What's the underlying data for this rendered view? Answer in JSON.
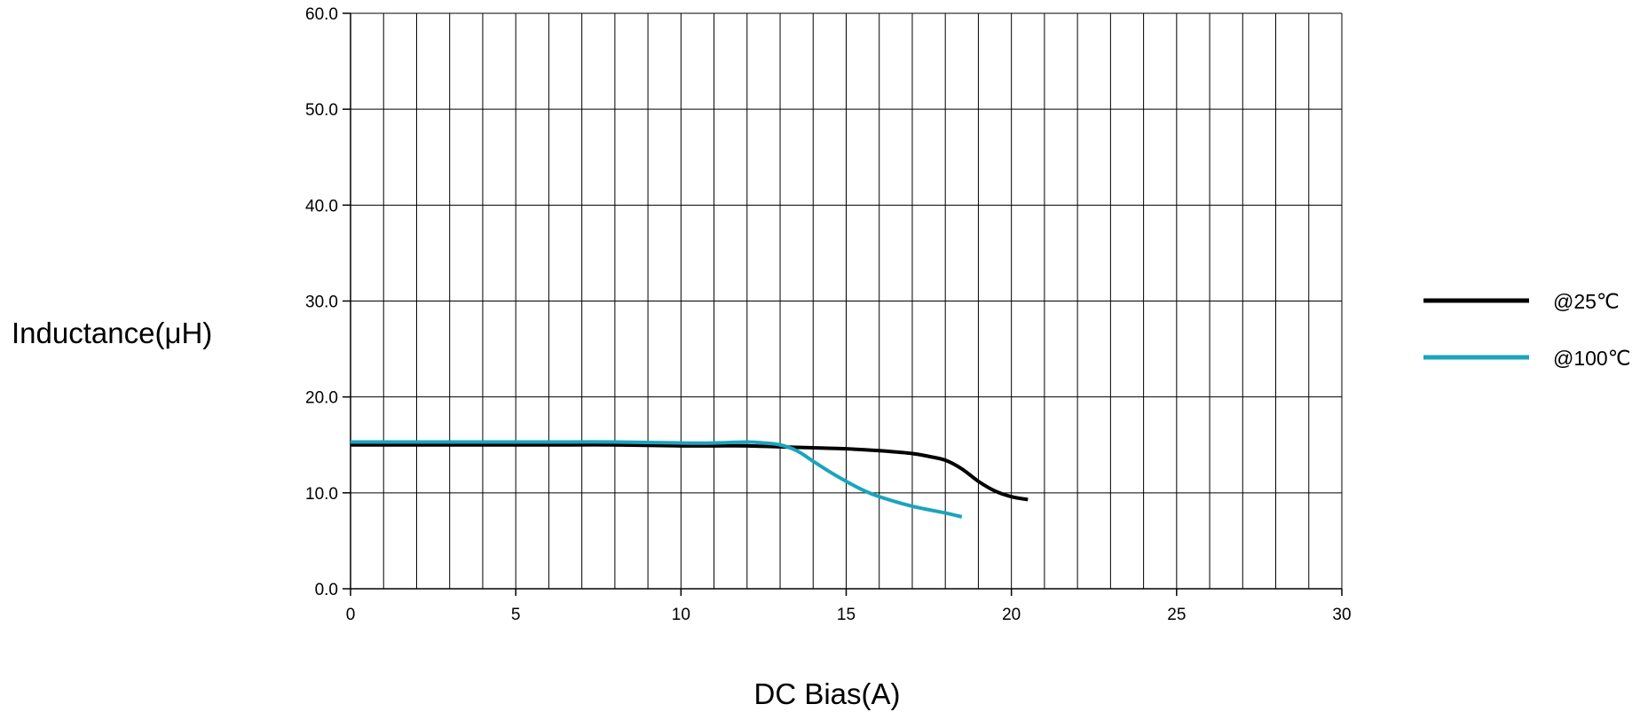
{
  "chart_data": {
    "type": "line",
    "title": "",
    "xlabel": "DC Bias(A)",
    "ylabel": "Inductance(μH)",
    "xlim": [
      0,
      30
    ],
    "ylim": [
      0,
      60
    ],
    "x_ticks": [
      0,
      5,
      10,
      15,
      20,
      25,
      30
    ],
    "x_tick_labels": [
      "0",
      "5",
      "10",
      "15",
      "20",
      "25",
      "30"
    ],
    "y_ticks": [
      0,
      10,
      20,
      30,
      40,
      50,
      60
    ],
    "y_tick_labels": [
      "0.0",
      "10.0",
      "20.0",
      "30.0",
      "40.0",
      "50.0",
      "60.0"
    ],
    "x_minor_grid_step": 1,
    "grid": true,
    "legend_position": "right",
    "series": [
      {
        "name": "@25℃",
        "color": "#000000",
        "x": [
          0,
          2,
          4,
          6,
          8,
          10,
          11,
          12,
          13,
          14,
          15,
          16,
          17,
          17.5,
          18,
          18.5,
          19,
          19.5,
          20,
          20.5
        ],
        "y": [
          15.0,
          15.0,
          15.0,
          15.0,
          15.0,
          14.9,
          14.9,
          14.9,
          14.8,
          14.7,
          14.6,
          14.4,
          14.1,
          13.8,
          13.4,
          12.5,
          11.2,
          10.2,
          9.6,
          9.3
        ]
      },
      {
        "name": "@100℃",
        "color": "#1aa4bd",
        "x": [
          0,
          2,
          4,
          6,
          8,
          10,
          11,
          12,
          12.5,
          13,
          13.5,
          14,
          14.5,
          15,
          15.5,
          16,
          17,
          18,
          18.5
        ],
        "y": [
          15.3,
          15.3,
          15.3,
          15.3,
          15.3,
          15.2,
          15.2,
          15.3,
          15.2,
          15.0,
          14.4,
          13.3,
          12.2,
          11.2,
          10.3,
          9.6,
          8.6,
          7.9,
          7.5
        ]
      }
    ]
  }
}
